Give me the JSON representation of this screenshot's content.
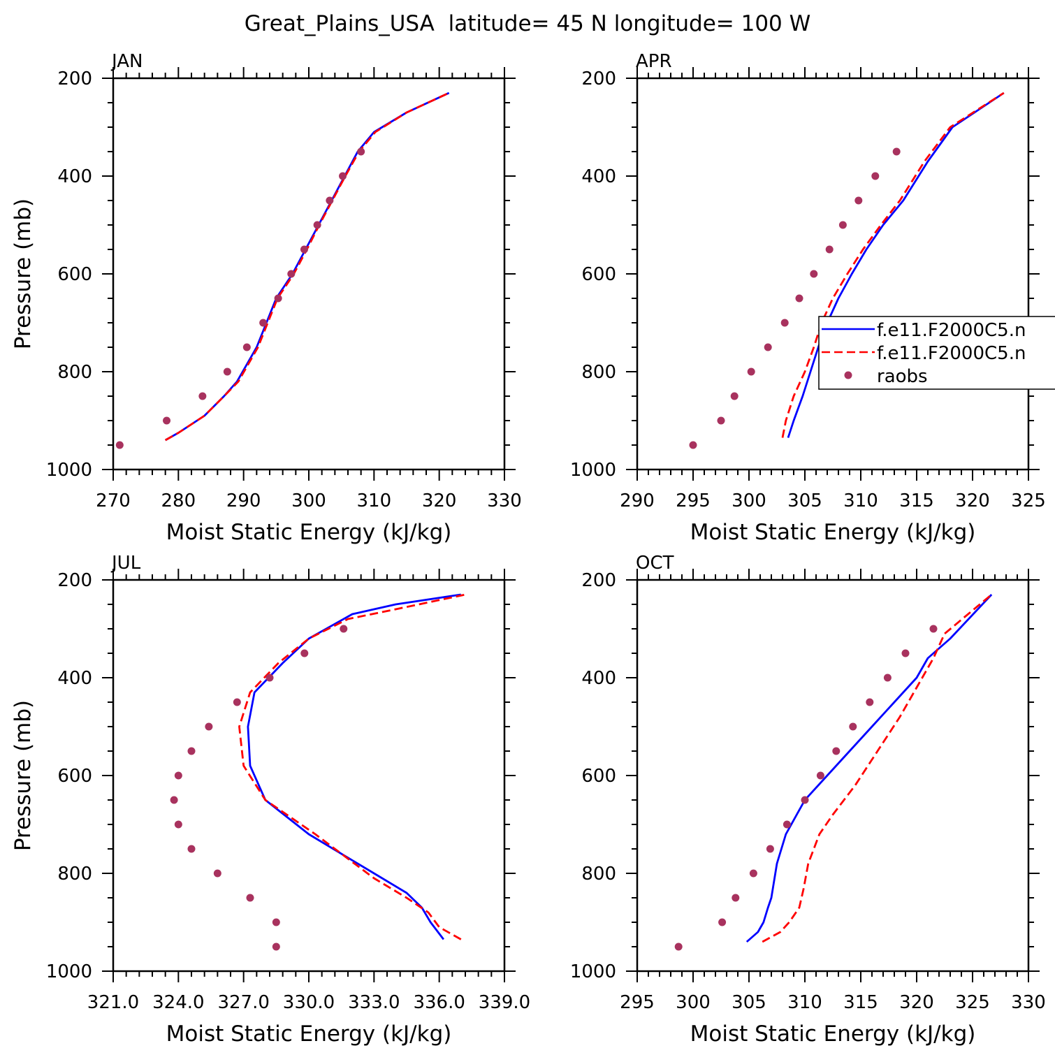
{
  "title": "Great_Plains_USA  latitude= 45 N longitude= 100 W",
  "colors": {
    "model1": "#0000ff",
    "model2": "#ff0000",
    "raobs": "#a8325e"
  },
  "legend": {
    "panel": "APR",
    "entries": [
      {
        "label": "f.e11.F2000C5.n",
        "style": "solid",
        "color": "#0000ff"
      },
      {
        "label": "f.e11.F2000C5.n",
        "style": "dashed",
        "color": "#ff0000"
      },
      {
        "label": "raobs",
        "style": "marker",
        "color": "#a8325e"
      }
    ]
  },
  "chart_data": [
    {
      "type": "line",
      "panel_label": "JAN",
      "xlabel": "Moist Static Energy (kJ/kg)",
      "ylabel": "Pressure (mb)",
      "xlim": [
        270,
        330
      ],
      "ylim": [
        1000,
        200
      ],
      "xticks": [
        270,
        280,
        290,
        300,
        310,
        320,
        330
      ],
      "xtick_labels": [
        "270",
        "280",
        "290",
        "300",
        "310",
        "320",
        "330"
      ],
      "yticks": [
        200,
        400,
        600,
        800,
        1000
      ],
      "ytick_labels": [
        "200",
        "400",
        "600",
        "800",
        "1000"
      ],
      "series": [
        {
          "type": "line",
          "style": "solid",
          "color": "#0000ff",
          "x": [
            278.0,
            280.0,
            284.0,
            287.0,
            289.0,
            292.0,
            295.0,
            297.5,
            299.5,
            301.5,
            303.5,
            305.5,
            307.5,
            310.0,
            315.0,
            321.5
          ],
          "y": [
            940,
            925,
            890,
            850,
            820,
            750,
            650,
            600,
            550,
            500,
            450,
            400,
            350,
            310,
            270,
            230
          ]
        },
        {
          "type": "line",
          "style": "dashed",
          "color": "#ff0000",
          "x": [
            278.0,
            280.0,
            284.0,
            287.0,
            289.2,
            292.2,
            295.2,
            297.7,
            299.7,
            301.6,
            303.6,
            305.6,
            307.7,
            310.2,
            315.0,
            321.5
          ],
          "y": [
            940,
            925,
            890,
            850,
            820,
            750,
            650,
            600,
            550,
            500,
            450,
            400,
            350,
            310,
            270,
            230
          ]
        },
        {
          "type": "scatter",
          "color": "#a8325e",
          "x": [
            271.0,
            278.2,
            283.7,
            287.5,
            290.5,
            293.0,
            295.3,
            297.3,
            299.3,
            301.3,
            303.2,
            305.2,
            308.0
          ],
          "y": [
            950,
            900,
            850,
            800,
            750,
            700,
            650,
            600,
            550,
            500,
            450,
            400,
            350
          ]
        }
      ]
    },
    {
      "type": "line",
      "panel_label": "APR",
      "xlabel": "Moist Static Energy (kJ/kg)",
      "ylabel": "",
      "xlim": [
        290,
        325
      ],
      "ylim": [
        1000,
        200
      ],
      "xticks": [
        290,
        295,
        300,
        305,
        310,
        315,
        320,
        325
      ],
      "xtick_labels": [
        "290",
        "295",
        "300",
        "305",
        "310",
        "315",
        "320",
        "325"
      ],
      "yticks": [
        200,
        400,
        600,
        800,
        1000
      ],
      "ytick_labels": [
        "200",
        "400",
        "600",
        "800",
        "1000"
      ],
      "series": [
        {
          "type": "line",
          "style": "solid",
          "color": "#0000ff",
          "x": [
            303.5,
            304.0,
            304.8,
            305.5,
            306.2,
            307.0,
            308.0,
            309.2,
            310.5,
            312.0,
            313.8,
            316.0,
            318.2,
            322.8
          ],
          "y": [
            935,
            900,
            850,
            800,
            750,
            700,
            650,
            600,
            550,
            500,
            450,
            370,
            300,
            230
          ]
        },
        {
          "type": "line",
          "style": "dashed",
          "color": "#ff0000",
          "x": [
            303.0,
            303.3,
            304.0,
            305.0,
            305.8,
            306.5,
            307.5,
            308.8,
            310.2,
            311.8,
            313.5,
            315.7,
            318.0,
            322.8
          ],
          "y": [
            935,
            900,
            850,
            800,
            750,
            700,
            650,
            600,
            550,
            500,
            450,
            370,
            300,
            230
          ]
        },
        {
          "type": "scatter",
          "color": "#a8325e",
          "x": [
            295.0,
            297.5,
            298.7,
            300.2,
            301.7,
            303.2,
            304.5,
            305.8,
            307.2,
            308.4,
            309.8,
            311.3,
            313.2
          ],
          "y": [
            950,
            900,
            850,
            800,
            750,
            700,
            650,
            600,
            550,
            500,
            450,
            400,
            350
          ]
        }
      ]
    },
    {
      "type": "line",
      "panel_label": "JUL",
      "xlabel": "Moist Static Energy (kJ/kg)",
      "ylabel": "Pressure (mb)",
      "xlim": [
        321,
        339
      ],
      "ylim": [
        1000,
        200
      ],
      "xticks": [
        321,
        324,
        327,
        330,
        333,
        336,
        339
      ],
      "xtick_labels": [
        "321.0",
        "324.0",
        "327.0",
        "330.0",
        "333.0",
        "336.0",
        "339.0"
      ],
      "yticks": [
        200,
        400,
        600,
        800,
        1000
      ],
      "ytick_labels": [
        "200",
        "400",
        "600",
        "800",
        "1000"
      ],
      "series": [
        {
          "type": "line",
          "style": "solid",
          "color": "#0000ff",
          "x": [
            336.2,
            335.6,
            335.2,
            334.5,
            333.0,
            330.0,
            328.0,
            327.3,
            327.2,
            327.5,
            328.8,
            330.0,
            332.0,
            334.0,
            337.0
          ],
          "y": [
            935,
            900,
            870,
            840,
            800,
            720,
            650,
            580,
            500,
            430,
            370,
            320,
            270,
            250,
            230
          ]
        },
        {
          "type": "line",
          "style": "dashed",
          "color": "#ff0000",
          "x": [
            337.0,
            336.0,
            335.5,
            334.5,
            333.0,
            330.3,
            328.0,
            327.0,
            326.8,
            327.3,
            328.6,
            330.0,
            331.8,
            334.0,
            337.2
          ],
          "y": [
            935,
            910,
            880,
            850,
            810,
            720,
            650,
            580,
            500,
            430,
            370,
            320,
            280,
            260,
            230
          ]
        },
        {
          "type": "scatter",
          "color": "#a8325e",
          "x": [
            328.5,
            328.5,
            327.3,
            325.8,
            324.6,
            324.0,
            323.8,
            324.0,
            324.6,
            325.4,
            326.7,
            328.2,
            329.8,
            331.6
          ],
          "y": [
            950,
            900,
            850,
            800,
            750,
            700,
            650,
            600,
            550,
            500,
            450,
            400,
            350,
            300
          ]
        }
      ]
    },
    {
      "type": "line",
      "panel_label": "OCT",
      "xlabel": "Moist Static Energy (kJ/kg)",
      "ylabel": "",
      "xlim": [
        295,
        330
      ],
      "ylim": [
        1000,
        200
      ],
      "xticks": [
        295,
        300,
        305,
        310,
        315,
        320,
        325,
        330
      ],
      "xtick_labels": [
        "295",
        "300",
        "305",
        "310",
        "315",
        "320",
        "325",
        "330"
      ],
      "yticks": [
        200,
        400,
        600,
        800,
        1000
      ],
      "ytick_labels": [
        "200",
        "400",
        "600",
        "800",
        "1000"
      ],
      "series": [
        {
          "type": "line",
          "style": "solid",
          "color": "#0000ff",
          "x": [
            304.8,
            305.8,
            306.3,
            306.7,
            307.0,
            307.5,
            308.3,
            310.0,
            312.0,
            314.0,
            316.0,
            318.0,
            320.0,
            321.0,
            323.0,
            326.7
          ],
          "y": [
            940,
            920,
            900,
            870,
            850,
            780,
            720,
            650,
            600,
            550,
            500,
            450,
            400,
            360,
            320,
            230
          ]
        },
        {
          "type": "line",
          "style": "dashed",
          "color": "#ff0000",
          "x": [
            306.2,
            307.8,
            308.6,
            309.5,
            309.9,
            310.3,
            311.3,
            312.5,
            314.5,
            316.5,
            318.5,
            320.0,
            321.5,
            322.5,
            326.7
          ],
          "y": [
            940,
            920,
            900,
            870,
            830,
            780,
            720,
            680,
            620,
            550,
            480,
            420,
            360,
            310,
            230
          ]
        },
        {
          "type": "scatter",
          "color": "#a8325e",
          "x": [
            298.7,
            302.6,
            303.8,
            305.4,
            306.9,
            308.4,
            310.0,
            311.4,
            312.8,
            314.3,
            315.8,
            317.4,
            319.0,
            321.5
          ],
          "y": [
            950,
            900,
            850,
            800,
            750,
            700,
            650,
            600,
            550,
            500,
            450,
            400,
            350,
            300
          ]
        }
      ]
    }
  ]
}
